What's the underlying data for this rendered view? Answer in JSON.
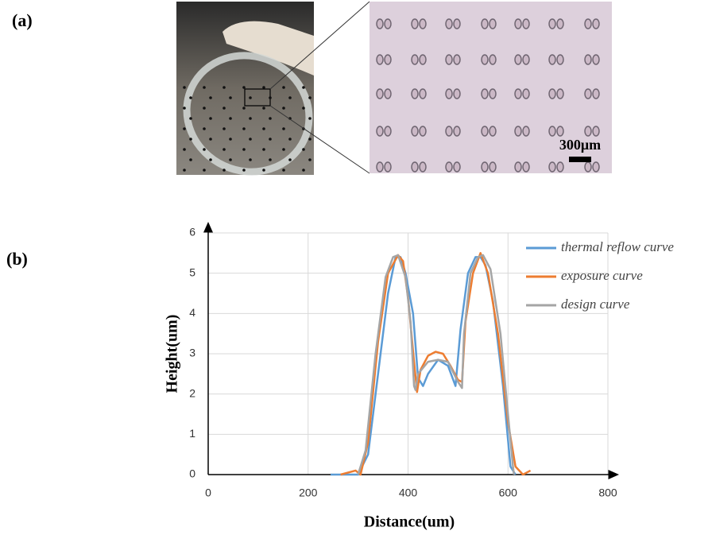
{
  "figure": {
    "label_a": "(a)",
    "scale_bar": "300μm",
    "label_b": "(b)"
  },
  "chart_data": {
    "type": "line",
    "xlabel": "Distance(um)",
    "ylabel": "Height(um)",
    "xlim": [
      0,
      800
    ],
    "xticks": [
      0,
      200,
      400,
      600,
      800
    ],
    "ylim": [
      0,
      6
    ],
    "yticks": [
      0,
      1,
      2,
      3,
      4,
      5,
      6
    ],
    "grid": true,
    "legend": "upper right",
    "series": [
      {
        "name": "thermal reflow curve",
        "color": "#5b9bd5",
        "x": [
          245,
          300,
          320,
          340,
          360,
          375,
          385,
          395,
          410,
          420,
          430,
          440,
          460,
          480,
          495,
          505,
          520,
          535,
          545,
          555,
          570,
          590,
          605,
          615
        ],
        "values": [
          0,
          0,
          0.5,
          2.5,
          4.5,
          5.4,
          5.4,
          5.0,
          4.0,
          2.4,
          2.2,
          2.5,
          2.85,
          2.7,
          2.2,
          3.6,
          5.0,
          5.4,
          5.4,
          5.2,
          4.3,
          2.2,
          0.2,
          0
        ]
      },
      {
        "name": "exposure curve",
        "color": "#ed7d31",
        "x": [
          265,
          295,
          305,
          320,
          340,
          360,
          380,
          390,
          400,
          412,
          418,
          425,
          440,
          455,
          470,
          485,
          500,
          508,
          515,
          530,
          545,
          560,
          580,
          600,
          615,
          630,
          645
        ],
        "values": [
          0,
          0.1,
          0,
          0.8,
          3.3,
          5.0,
          5.45,
          5.3,
          4.4,
          2.8,
          2.05,
          2.6,
          2.95,
          3.05,
          3.0,
          2.7,
          2.35,
          2.3,
          3.8,
          5.0,
          5.5,
          5.0,
          3.5,
          1.3,
          0.2,
          0,
          0.1
        ]
      },
      {
        "name": "design curve",
        "color": "#a5a5a5",
        "x": [
          300,
          315,
          335,
          355,
          370,
          380,
          395,
          405,
          412,
          415,
          420,
          440,
          460,
          480,
          500,
          508,
          512,
          525,
          540,
          550,
          565,
          585,
          600,
          610,
          612
        ],
        "values": [
          0,
          0.6,
          3.0,
          4.9,
          5.4,
          5.45,
          4.9,
          3.8,
          2.2,
          2.1,
          2.5,
          2.8,
          2.85,
          2.8,
          2.3,
          2.15,
          3.5,
          5.0,
          5.4,
          5.45,
          5.1,
          3.5,
          1.5,
          0.2,
          0
        ]
      }
    ]
  }
}
